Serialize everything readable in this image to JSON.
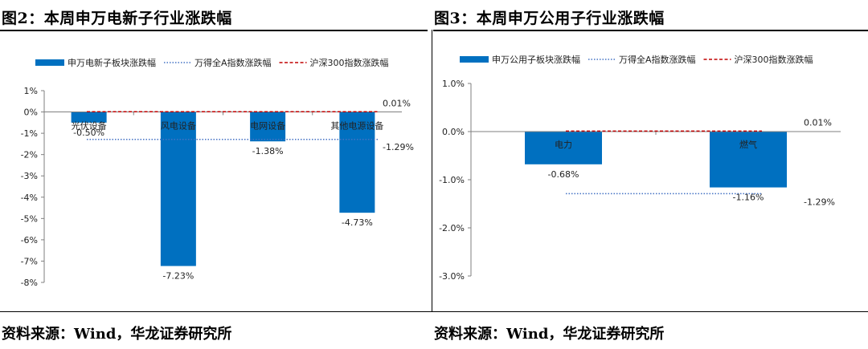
{
  "charts": [
    {
      "title": "图2：本周申万电新子行业涨跌幅",
      "source": "资料来源：Wind，华龙证券研究所",
      "legend": {
        "bar": "申万电新子板块涨跌幅",
        "line_dotted": "万得全A指数涨跌幅",
        "line_dashed": "沪深300指数涨跌幅"
      }
    },
    {
      "title": "图3：本周申万公用子行业涨跌幅",
      "source": "资料来源：Wind，华龙证券研究所",
      "legend": {
        "bar": "申万公用子板块涨跌幅",
        "line_dotted": "万得全A指数涨跌幅",
        "line_dashed": "沪深300指数涨跌幅"
      }
    }
  ],
  "chart_data": [
    {
      "type": "bar",
      "title": "本周申万电新子行业涨跌幅",
      "categories": [
        "光伏设备",
        "风电设备",
        "电网设备",
        "其他电源设备"
      ],
      "values": [
        -0.5,
        -7.23,
        -1.38,
        -4.73
      ],
      "value_labels": [
        "-0.50%",
        "-7.23%",
        "-1.38%",
        "-4.73%"
      ],
      "reference_lines": [
        {
          "name": "万得全A指数涨跌幅",
          "value": -1.29,
          "label": "-1.29%",
          "style": "dotted"
        },
        {
          "name": "沪深300指数涨跌幅",
          "value": 0.01,
          "label": "0.01%",
          "style": "dashed"
        }
      ],
      "y_ticks": [
        1,
        0,
        -1,
        -2,
        -3,
        -4,
        -5,
        -6,
        -7,
        -8
      ],
      "y_tick_labels": [
        "1%",
        "0%",
        "-1%",
        "-2%",
        "-3%",
        "-4%",
        "-5%",
        "-6%",
        "-7%",
        "-8%"
      ],
      "ylim": [
        -8,
        1
      ],
      "colors": {
        "bar": "#0070C0",
        "line_dotted": "#4472C4",
        "line_dashed": "#C00000"
      }
    },
    {
      "type": "bar",
      "title": "本周申万公用子行业涨跌幅",
      "categories": [
        "电力",
        "燃气"
      ],
      "values": [
        -0.68,
        -1.16
      ],
      "value_labels": [
        "-0.68%",
        "-1.16%"
      ],
      "reference_lines": [
        {
          "name": "万得全A指数涨跌幅",
          "value": -1.29,
          "label": "-1.29%",
          "style": "dotted"
        },
        {
          "name": "沪深300指数涨跌幅",
          "value": 0.01,
          "label": "0.01%",
          "style": "dashed"
        }
      ],
      "y_ticks": [
        1.0,
        0.0,
        -1.0,
        -2.0,
        -3.0
      ],
      "y_tick_labels": [
        "1.0%",
        "0.0%",
        "-1.0%",
        "-2.0%",
        "-3.0%"
      ],
      "ylim": [
        -3,
        1
      ],
      "colors": {
        "bar": "#0070C0",
        "line_dotted": "#4472C4",
        "line_dashed": "#C00000"
      }
    }
  ]
}
